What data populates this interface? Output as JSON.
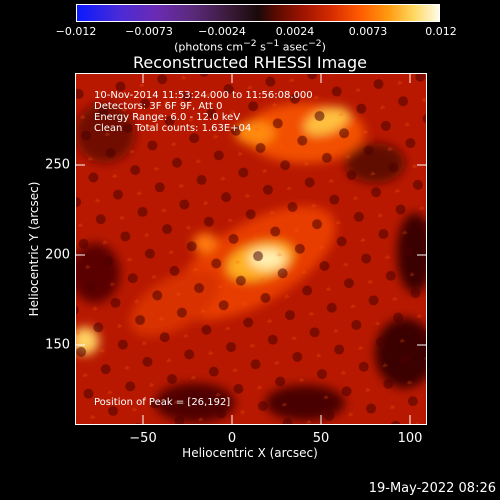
{
  "colorbar": {
    "ticks": [
      "−0.012",
      "−0.0073",
      "−0.0024",
      "0.0024",
      "0.0073",
      "0.012"
    ],
    "unit_base": "(photons cm",
    "unit_e1": "−2",
    "unit_mid1": " s",
    "unit_e2": "−1",
    "unit_mid2": " asec",
    "unit_e3": "−2",
    "unit_end": ")"
  },
  "title": "Reconstructed RHESSI Image",
  "info": {
    "line1": "10-Nov-2014 11:53:24.000 to 11:56:08.000",
    "line2": "Detectors: 3F 6F 9F, Att 0",
    "line3": "Energy Range: 6.0 - 12.0 keV",
    "line4": "Clean    Total counts: 1.63E+04",
    "peak": "Position of Peak = [26,192]"
  },
  "axes": {
    "xlabel": "Heliocentric X (arcsec)",
    "ylabel": "Heliocentric Y (arcsec)",
    "xticks": [
      "−50",
      "0",
      "50",
      "100"
    ],
    "yticks": [
      "250",
      "200",
      "150"
    ]
  },
  "timestamp": "19-May-2022 08:26"
}
